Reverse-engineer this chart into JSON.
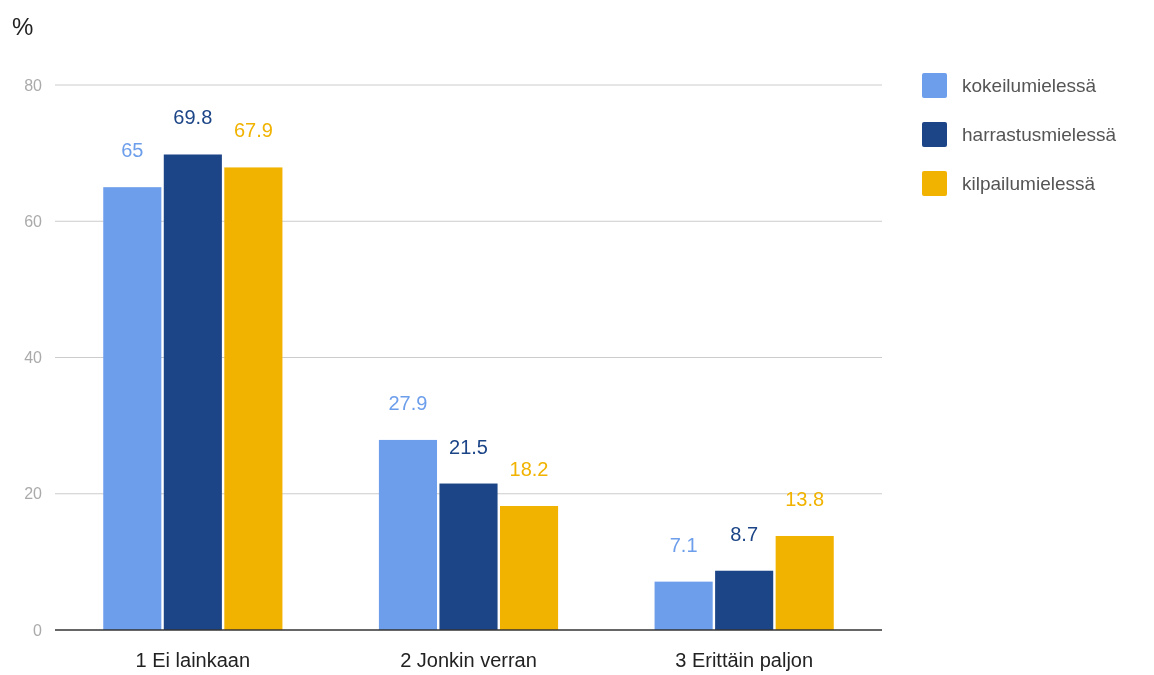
{
  "chart_data": {
    "type": "bar",
    "ylabel": "%",
    "categories": [
      "1 Ei lainkaan",
      "2 Jonkin verran",
      "3 Erittäin paljon"
    ],
    "series": [
      {
        "name": "kokeilumielessä",
        "color": "#6d9eeb",
        "values": [
          65,
          27.9,
          7.1
        ]
      },
      {
        "name": "harrastusmielessä",
        "color": "#1c4587",
        "values": [
          69.8,
          21.5,
          8.7
        ]
      },
      {
        "name": "kilpailumielessä",
        "color": "#f1b300",
        "values": [
          67.9,
          18.2,
          13.8
        ]
      }
    ],
    "ylim": [
      0,
      80
    ],
    "yticks": [
      0,
      20,
      40,
      60,
      80
    ],
    "grid": "y",
    "legend": "right",
    "data_labels": true
  }
}
